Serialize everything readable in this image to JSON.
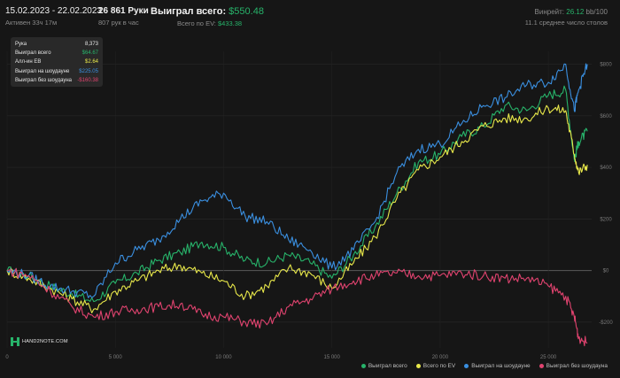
{
  "header": {
    "date_range": "15.02.2023 - 22.02.2023",
    "active": "Активен 33ч 17м",
    "hands_label": "26 861 Руки",
    "hands_per_hour": "807 рук в час",
    "won_label": "Выиграл всего:",
    "won_value": "$550.48",
    "ev_label": "Всего по EV:",
    "ev_value": "$433.38",
    "winrate_label": "Винрейт:",
    "winrate_value": "26.12",
    "winrate_unit": "bb/100",
    "avg_tables": "11.1 среднее число столов"
  },
  "tooltip": {
    "rows": [
      {
        "label": "Рука",
        "value": "8,373",
        "color": "#e6e6e6"
      },
      {
        "label": "Выиграл всего",
        "value": "$64.67",
        "color": "#27b36a"
      },
      {
        "label": "Алл-ин EВ",
        "value": "$2.64",
        "color": "#e8e84a"
      },
      {
        "label": "Выиграл на шоудауне",
        "value": "$225.05",
        "color": "#3a8fe0"
      },
      {
        "label": "Выиграл без шоудауна",
        "value": "-$160.38",
        "color": "#e0436f"
      }
    ]
  },
  "logo": {
    "text": "HAND2NOTE.COM"
  },
  "legend": [
    {
      "label": "Выиграл всего",
      "color": "#27b36a"
    },
    {
      "label": "Всего по EV",
      "color": "#e8e84a"
    },
    {
      "label": "Выиграл на шоудауне",
      "color": "#3a8fe0"
    },
    {
      "label": "Выиграл без шоудауна",
      "color": "#e0436f"
    }
  ],
  "chart_data": {
    "type": "line",
    "title": "",
    "xlabel": "",
    "ylabel": "",
    "xlim": [
      0,
      27000
    ],
    "ylim": [
      -300,
      850
    ],
    "x_ticks": [
      0,
      5000,
      10000,
      15000,
      20000,
      25000
    ],
    "x_tick_labels": [
      "0",
      "5 000",
      "10 000",
      "15 000",
      "20 000",
      "25 000"
    ],
    "y_ticks": [
      -200,
      0,
      200,
      400,
      600,
      800
    ],
    "y_tick_labels": [
      "-$200",
      "$0",
      "$200",
      "$400",
      "$600",
      "$800"
    ],
    "grid": true,
    "legend_position": "bottom-right",
    "series": [
      {
        "name": "Выиграл всего",
        "color": "#27b36a",
        "x": [
          0,
          1000,
          2000,
          3000,
          4000,
          5000,
          6000,
          7000,
          8000,
          9000,
          10000,
          11000,
          12000,
          13000,
          14000,
          15000,
          16000,
          17000,
          18000,
          19000,
          20000,
          21000,
          22000,
          23000,
          24000,
          25000,
          25800,
          26200,
          26400,
          26800
        ],
        "y": [
          0,
          -20,
          -60,
          -90,
          -120,
          -50,
          -10,
          40,
          70,
          110,
          90,
          40,
          30,
          60,
          30,
          -30,
          60,
          170,
          300,
          420,
          450,
          520,
          560,
          640,
          620,
          680,
          700,
          430,
          500,
          540
        ]
      },
      {
        "name": "Всего по EV",
        "color": "#e8e84a",
        "x": [
          0,
          1000,
          2000,
          3000,
          4000,
          5000,
          6000,
          7000,
          8000,
          9000,
          10000,
          11000,
          12000,
          13000,
          14000,
          15000,
          16000,
          17000,
          18000,
          19000,
          20000,
          21000,
          22000,
          23000,
          24000,
          25000,
          25800,
          26200,
          26400,
          26800
        ],
        "y": [
          0,
          -30,
          -70,
          -110,
          -150,
          -80,
          -40,
          0,
          20,
          -10,
          -40,
          -100,
          -60,
          10,
          -10,
          -70,
          30,
          130,
          280,
          390,
          440,
          500,
          560,
          590,
          590,
          630,
          620,
          450,
          380,
          410
        ]
      },
      {
        "name": "Выиграл на шоудауне",
        "color": "#3a8fe0",
        "x": [
          0,
          1000,
          2000,
          3000,
          4000,
          5000,
          6000,
          7000,
          8000,
          9000,
          10000,
          11000,
          12000,
          13000,
          14000,
          15000,
          16000,
          17000,
          18000,
          19000,
          20000,
          21000,
          22000,
          23000,
          24000,
          25000,
          25800,
          26200,
          26400,
          26800
        ],
        "y": [
          0,
          -20,
          -60,
          -80,
          -100,
          30,
          80,
          120,
          200,
          270,
          300,
          210,
          190,
          120,
          80,
          10,
          80,
          190,
          380,
          470,
          490,
          570,
          640,
          670,
          720,
          730,
          800,
          620,
          700,
          800
        ]
      },
      {
        "name": "Выиграл без шоудауна",
        "color": "#e0436f",
        "x": [
          0,
          1000,
          2000,
          3000,
          4000,
          5000,
          6000,
          7000,
          8000,
          9000,
          10000,
          11000,
          12000,
          13000,
          14000,
          15000,
          16000,
          17000,
          18000,
          19000,
          20000,
          21000,
          22000,
          23000,
          24000,
          25000,
          25800,
          26200,
          26400,
          26800
        ],
        "y": [
          0,
          -20,
          -80,
          -140,
          -180,
          -160,
          -150,
          -140,
          -130,
          -170,
          -180,
          -200,
          -210,
          -140,
          -110,
          -70,
          -40,
          -20,
          -10,
          -20,
          -20,
          -10,
          -20,
          -30,
          -30,
          -60,
          -100,
          -180,
          -260,
          -280
        ]
      }
    ]
  }
}
